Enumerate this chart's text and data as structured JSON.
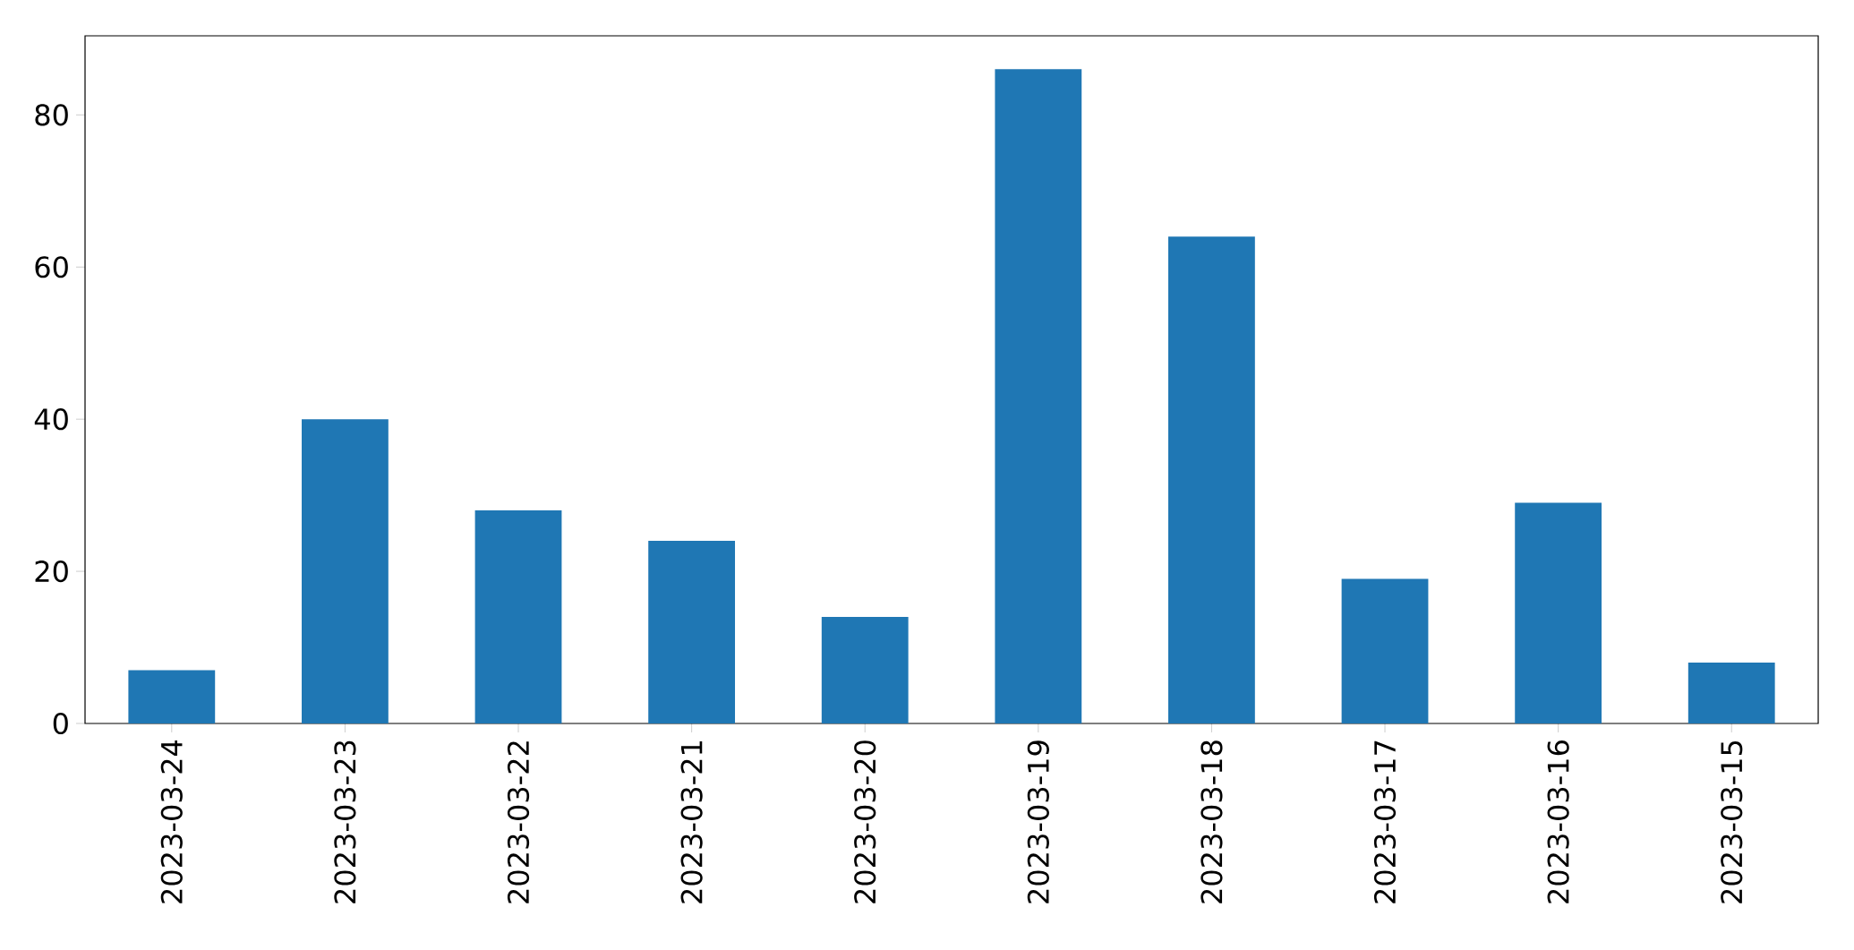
{
  "chart_data": {
    "type": "bar",
    "categories": [
      "2023-03-24",
      "2023-03-23",
      "2023-03-22",
      "2023-03-21",
      "2023-03-20",
      "2023-03-19",
      "2023-03-18",
      "2023-03-17",
      "2023-03-16",
      "2023-03-15"
    ],
    "values": [
      7,
      40,
      28,
      24,
      14,
      86,
      64,
      19,
      29,
      8
    ],
    "color": "#1f77b4",
    "ylim": [
      0,
      90.4
    ],
    "yticks": [
      0,
      20,
      40,
      60,
      80
    ]
  }
}
